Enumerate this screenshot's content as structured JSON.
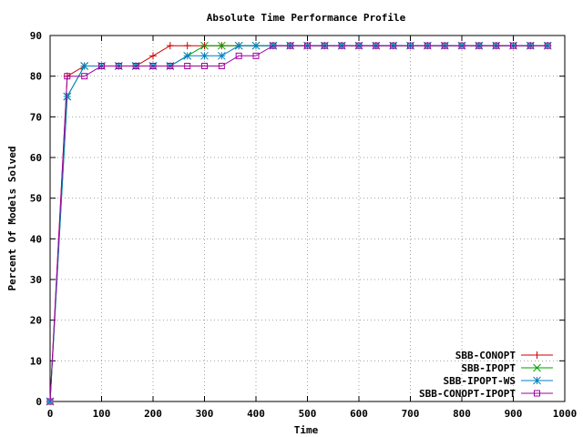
{
  "chart_data": {
    "type": "line",
    "title": "Absolute Time Performance Profile",
    "xlabel": "Time",
    "ylabel": "Percent Of Models Solved",
    "xlim": [
      0,
      1000
    ],
    "ylim": [
      0,
      90
    ],
    "xticks": [
      "0",
      "100",
      "200",
      "300",
      "400",
      "500",
      "600",
      "700",
      "800",
      "900",
      "1000"
    ],
    "yticks": [
      "0",
      "10",
      "20",
      "30",
      "40",
      "50",
      "60",
      "70",
      "80",
      "90"
    ],
    "grid": true,
    "legend_position": "bottom-right",
    "x": [
      0,
      33.3,
      66.7,
      100,
      133.3,
      166.7,
      200,
      233.3,
      266.7,
      300,
      333.3,
      366.7,
      400,
      433.3,
      466.7,
      500,
      533.3,
      566.7,
      600,
      633.3,
      666.7,
      700,
      733.3,
      766.7,
      800,
      833.3,
      866.7,
      900,
      933.3,
      966.7
    ],
    "series": [
      {
        "name": "SBB-CONOPT",
        "color": "#cc0000",
        "marker": "plus",
        "values": [
          0,
          80,
          82.5,
          82.5,
          82.5,
          82.5,
          85,
          87.5,
          87.5,
          87.5,
          87.5,
          87.5,
          87.5,
          87.5,
          87.5,
          87.5,
          87.5,
          87.5,
          87.5,
          87.5,
          87.5,
          87.5,
          87.5,
          87.5,
          87.5,
          87.5,
          87.5,
          87.5,
          87.5,
          87.5
        ]
      },
      {
        "name": "SBB-IPOPT",
        "color": "#00a000",
        "marker": "cross",
        "values": [
          0,
          75,
          82.5,
          82.5,
          82.5,
          82.5,
          82.5,
          82.5,
          85,
          87.5,
          87.5,
          87.5,
          87.5,
          87.5,
          87.5,
          87.5,
          87.5,
          87.5,
          87.5,
          87.5,
          87.5,
          87.5,
          87.5,
          87.5,
          87.5,
          87.5,
          87.5,
          87.5,
          87.5,
          87.5
        ]
      },
      {
        "name": "SBB-IPOPT-WS",
        "color": "#0080c0",
        "marker": "star",
        "values": [
          0,
          75,
          82.5,
          82.5,
          82.5,
          82.5,
          82.5,
          82.5,
          85,
          85,
          85,
          87.5,
          87.5,
          87.5,
          87.5,
          87.5,
          87.5,
          87.5,
          87.5,
          87.5,
          87.5,
          87.5,
          87.5,
          87.5,
          87.5,
          87.5,
          87.5,
          87.5,
          87.5,
          87.5
        ]
      },
      {
        "name": "SBB-CONOPT-IPOPT",
        "color": "#a000a0",
        "marker": "square",
        "values": [
          0,
          80,
          80,
          82.5,
          82.5,
          82.5,
          82.5,
          82.5,
          82.5,
          82.5,
          82.5,
          85,
          85,
          87.5,
          87.5,
          87.5,
          87.5,
          87.5,
          87.5,
          87.5,
          87.5,
          87.5,
          87.5,
          87.5,
          87.5,
          87.5,
          87.5,
          87.5,
          87.5,
          87.5
        ]
      }
    ]
  }
}
